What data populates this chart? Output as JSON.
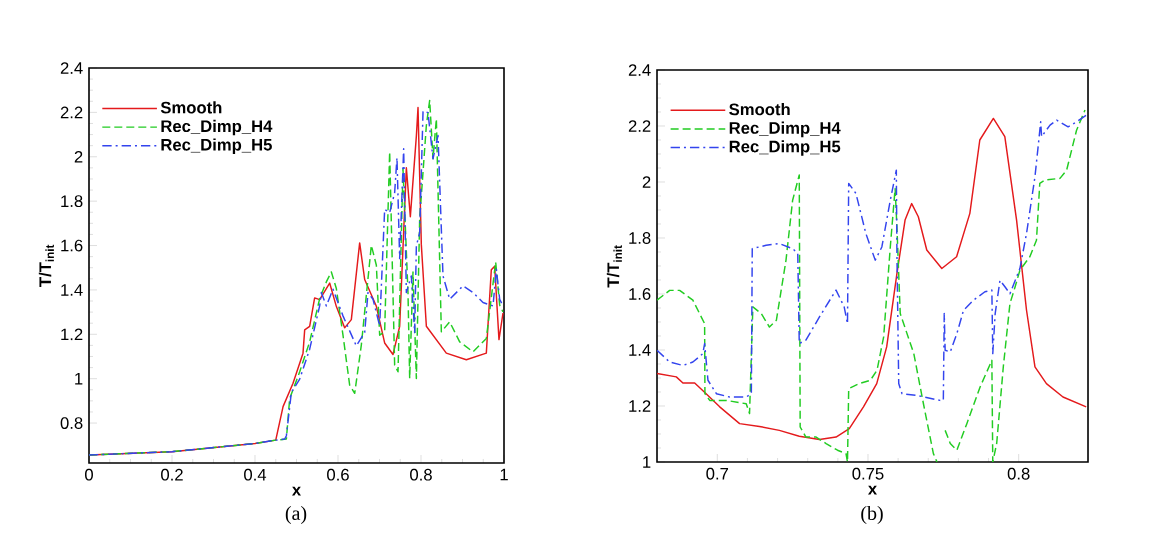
{
  "chart_data": [
    {
      "type": "line",
      "xlabel": "x",
      "ylabel": "T/T$_{init}$",
      "xlim": [
        0,
        1
      ],
      "ylim": [
        0.62,
        2.4
      ],
      "xticks": [
        0,
        0.2,
        0.4,
        0.6,
        0.8,
        1
      ],
      "yticks": [
        0.8,
        1,
        1.2,
        1.4,
        1.6,
        1.8,
        2,
        2.2,
        2.4
      ],
      "legend": "top left",
      "grid": false,
      "annotations": [
        "(a)"
      ],
      "series": [
        {
          "name": "Smooth",
          "color": "#e41a1c",
          "line_style": "solid",
          "x": [
            0,
            0.2,
            0.4,
            0.45,
            0.4676,
            0.4916,
            0.5157,
            0.5197,
            0.5317,
            0.5437,
            0.5558,
            0.5799,
            0.5959,
            0.616,
            0.6321,
            0.6522,
            0.6643,
            0.6924,
            0.7124,
            0.7325,
            0.7486,
            0.7647,
            0.7743,
            0.7888,
            0.7928,
            0.8008,
            0.8129,
            0.861,
            0.9092,
            0.9574,
            0.9694,
            0.9775,
            0.9879,
            0.9976
          ],
          "values": [
            0.656,
            0.671,
            0.708,
            0.723,
            0.874,
            0.979,
            1.115,
            1.22,
            1.236,
            1.364,
            1.356,
            1.431,
            1.326,
            1.229,
            1.266,
            1.612,
            1.447,
            1.326,
            1.161,
            1.109,
            1.236,
            1.95,
            1.73,
            2.093,
            2.222,
            1.604,
            1.236,
            1.115,
            1.085,
            1.115,
            1.491,
            1.506,
            1.176,
            1.296
          ]
        },
        {
          "name": "Rec_Dimp_H4",
          "color": "#22cc22",
          "line_style": "dashed",
          "x": [
            0,
            0.2,
            0.4,
            0.45,
            0.4756,
            0.4836,
            0.5077,
            0.5317,
            0.5558,
            0.5719,
            0.584,
            0.596,
            0.612,
            0.6281,
            0.6402,
            0.6562,
            0.6803,
            0.6924,
            0.7004,
            0.7124,
            0.7245,
            0.7365,
            0.7446,
            0.7566,
            0.7686,
            0.7727,
            0.7807,
            0.7888,
            0.7968,
            0.8129,
            0.8209,
            0.8289,
            0.837,
            0.849,
            0.8691,
            0.8932,
            0.9253,
            0.9574,
            0.9799,
            0.9896,
            0.9976
          ],
          "values": [
            0.656,
            0.671,
            0.708,
            0.723,
            0.728,
            0.911,
            1.031,
            1.166,
            1.361,
            1.436,
            1.481,
            1.406,
            1.196,
            0.971,
            0.934,
            1.151,
            1.601,
            1.511,
            1.196,
            1.211,
            2.022,
            1.061,
            1.031,
            1.946,
            1.391,
            1.001,
            1.481,
            1.001,
            1.721,
            2.141,
            2.254,
            1.991,
            2.171,
            1.211,
            1.256,
            1.166,
            1.121,
            1.181,
            1.526,
            1.331,
            1.301
          ]
        },
        {
          "name": "Rec_Dimp_H5",
          "color": "#3344ee",
          "line_style": "dashdot",
          "x": [
            0,
            0.2,
            0.4,
            0.45,
            0.4716,
            0.4756,
            0.4876,
            0.5077,
            0.5317,
            0.5558,
            0.5598,
            0.5719,
            0.588,
            0.612,
            0.6441,
            0.6643,
            0.6723,
            0.6844,
            0.7004,
            0.7124,
            0.7245,
            0.7365,
            0.7421,
            0.7486,
            0.7582,
            0.7647,
            0.7767,
            0.7847,
            0.7888,
            0.7968,
            0.8049,
            0.8169,
            0.8289,
            0.841,
            0.853,
            0.8691,
            0.9012,
            0.9253,
            0.9494,
            0.9735,
            0.9815,
            0.9896,
            0.9976
          ],
          "values": [
            0.656,
            0.671,
            0.708,
            0.723,
            0.728,
            0.743,
            0.938,
            0.998,
            1.133,
            1.328,
            1.388,
            1.328,
            1.403,
            1.283,
            1.148,
            1.208,
            1.388,
            1.358,
            1.238,
            1.763,
            1.748,
            1.838,
            1.996,
            1.541,
            2.036,
            1.388,
            1.463,
            1.208,
            1.598,
            1.658,
            2.206,
            2.199,
            1.991,
            2.096,
            1.463,
            1.358,
            1.418,
            1.388,
            1.343,
            1.328,
            1.493,
            1.358,
            1.328
          ]
        }
      ]
    },
    {
      "type": "line",
      "xlabel": "x",
      "ylabel": "T/T$_{init}$",
      "xlim": [
        0.68,
        0.823
      ],
      "ylim": [
        1,
        2.4
      ],
      "xticks": [
        0.7,
        0.75,
        0.8
      ],
      "yticks": [
        1,
        1.2,
        1.4,
        1.6,
        1.8,
        2,
        2.2,
        2.4
      ],
      "legend": "top left",
      "grid": false,
      "annotations": [
        "(b)"
      ],
      "series": [
        {
          "name": "Smooth",
          "color": "#e41a1c",
          "line_style": "solid",
          "x": [
            0.68,
            0.6864,
            0.6886,
            0.6925,
            0.6963,
            0.7008,
            0.7074,
            0.714,
            0.7206,
            0.7272,
            0.7339,
            0.7394,
            0.7438,
            0.7485,
            0.7529,
            0.7562,
            0.7596,
            0.7623,
            0.7645,
            0.7667,
            0.7695,
            0.7745,
            0.7794,
            0.7838,
            0.7871,
            0.7916,
            0.7954,
            0.7993,
            0.8026,
            0.8054,
            0.8092,
            0.8147,
            0.8224
          ],
          "values": [
            1.316,
            1.304,
            1.282,
            1.282,
            1.244,
            1.197,
            1.137,
            1.127,
            1.113,
            1.092,
            1.08,
            1.089,
            1.119,
            1.197,
            1.28,
            1.411,
            1.673,
            1.864,
            1.923,
            1.876,
            1.757,
            1.691,
            1.733,
            1.888,
            2.15,
            2.227,
            2.162,
            1.864,
            1.542,
            1.34,
            1.28,
            1.232,
            1.197
          ]
        },
        {
          "name": "Rec_Dimp_H4",
          "color": "#22cc22",
          "line_style": "dashed",
          "x": [
            0.68,
            0.6842,
            0.6875,
            0.6919,
            0.6958,
            0.6959,
            0.6975,
            0.703,
            0.7096,
            0.7107,
            0.7118,
            0.7146,
            0.7173,
            0.7196,
            0.7228,
            0.725,
            0.7272,
            0.7275,
            0.7294,
            0.7328,
            0.7361,
            0.7399,
            0.7427,
            0.7432,
            0.7436,
            0.7471,
            0.7508,
            0.753,
            0.7552,
            0.7574,
            0.759,
            0.7596,
            0.7607,
            0.7652,
            0.7684,
            0.7717,
            0.7729,
            0.774,
            0.7756,
            0.7773,
            0.7795,
            0.7828,
            0.7872,
            0.7911,
            0.7914,
            0.7927,
            0.7949,
            0.7971,
            0.7988,
            0.8004,
            0.8037,
            0.8059,
            0.807,
            0.8087,
            0.8137,
            0.8159,
            0.8192,
            0.822
          ],
          "values": [
            1.578,
            1.613,
            1.613,
            1.578,
            1.494,
            1.244,
            1.22,
            1.22,
            1.208,
            1.173,
            1.554,
            1.53,
            1.482,
            1.506,
            1.721,
            1.935,
            2.025,
            1.125,
            1.089,
            1.089,
            1.066,
            1.042,
            1.03,
            1.0,
            1.262,
            1.28,
            1.292,
            1.328,
            1.447,
            1.768,
            1.977,
            1.84,
            1.53,
            1.387,
            1.208,
            1.03,
            1.0,
            null,
            1.113,
            1.066,
            1.042,
            1.137,
            1.268,
            1.363,
            1.0,
            1.066,
            1.34,
            1.566,
            1.625,
            1.685,
            1.733,
            1.792,
            1.995,
            2.007,
            2.013,
            2.042,
            2.185,
            2.257
          ]
        },
        {
          "name": "Rec_Dimp_H5",
          "color": "#3344ee",
          "line_style": "dashdot",
          "x": [
            0.68,
            0.6842,
            0.6886,
            0.6919,
            0.6952,
            0.6958,
            0.6969,
            0.6997,
            0.7041,
            0.7096,
            0.7113,
            0.7116,
            0.7162,
            0.7206,
            0.725,
            0.7267,
            0.7272,
            0.7294,
            0.7339,
            0.7394,
            0.7421,
            0.7432,
            0.7436,
            0.746,
            0.7493,
            0.7524,
            0.7546,
            0.7574,
            0.7594,
            0.7596,
            0.7602,
            0.7613,
            0.7662,
            0.7739,
            0.775,
            0.7753,
            0.7756,
            0.7773,
            0.7795,
            0.7817,
            0.785,
            0.7888,
            0.7911,
            0.7914,
            0.7922,
            0.7938,
            0.7955,
            0.7971,
            0.8004,
            0.8026,
            0.8054,
            0.8068,
            0.8073,
            0.8076,
            0.8104,
            0.8126,
            0.8164,
            0.8192,
            0.8225
          ],
          "values": [
            1.399,
            1.357,
            1.345,
            1.357,
            1.387,
            1.423,
            1.292,
            1.244,
            1.232,
            1.232,
            1.244,
            1.762,
            1.774,
            1.78,
            1.762,
            1.745,
            1.423,
            1.435,
            1.518,
            1.614,
            1.554,
            1.494,
            1.995,
            1.959,
            1.816,
            1.721,
            1.768,
            1.935,
            2.042,
            1.745,
            1.28,
            1.244,
            1.238,
            1.22,
            1.22,
            1.53,
            1.399,
            1.393,
            1.459,
            1.542,
            1.578,
            1.608,
            1.614,
            1.387,
            1.53,
            1.649,
            1.625,
            1.601,
            1.691,
            1.816,
            2.019,
            2.162,
            2.215,
            2.162,
            2.203,
            2.221,
            2.197,
            2.215,
            2.239
          ]
        }
      ]
    }
  ]
}
